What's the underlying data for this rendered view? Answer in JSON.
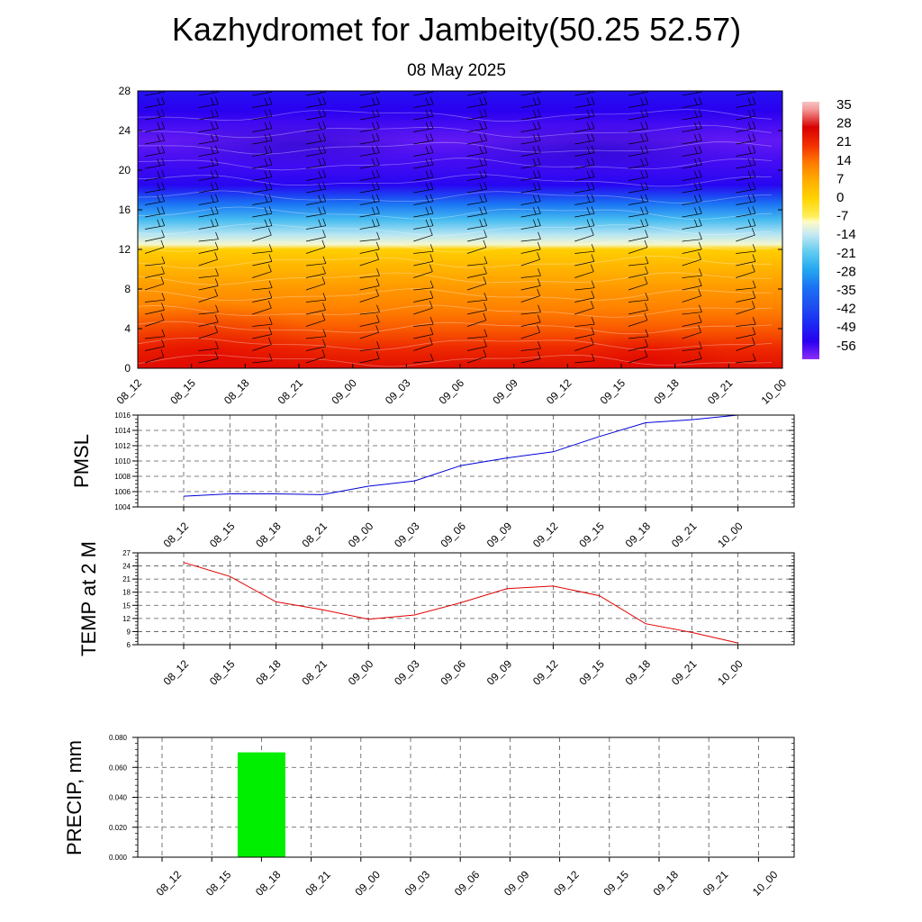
{
  "title": "Kazhydromet for Jambeity(50.25 52.57)",
  "subtitle": "08 May 2025",
  "colors": {
    "pmsl_line": "#0000d8",
    "temp_line": "#e00000",
    "precip_bar": "#00ee00"
  },
  "chart_data": [
    {
      "type": "heatmap",
      "name": "cross-section",
      "xlabel": "",
      "ylabel": "",
      "x_ticks": [
        "08_12",
        "08_15",
        "08_18",
        "08_21",
        "09_00",
        "09_03",
        "09_06",
        "09_09",
        "09_12",
        "09_15",
        "09_18",
        "09_21",
        "10_00"
      ],
      "y_ticks": [
        0,
        4,
        8,
        12,
        16,
        20,
        24,
        28
      ],
      "ylim": [
        0,
        28
      ],
      "colorbar_ticks": [
        35,
        28,
        21,
        14,
        7,
        0,
        -7,
        -14,
        -21,
        -28,
        -35,
        -42,
        -49,
        -56
      ],
      "colorbar_range": [
        -63,
        38
      ],
      "temperature_profile": [
        {
          "level": 0,
          "value": 26
        },
        {
          "level": 2,
          "value": 22
        },
        {
          "level": 4,
          "value": 17
        },
        {
          "level": 6,
          "value": 13
        },
        {
          "level": 8,
          "value": 10
        },
        {
          "level": 10,
          "value": 6
        },
        {
          "level": 12,
          "value": 1
        },
        {
          "level": 12.5,
          "value": -10
        },
        {
          "level": 13.5,
          "value": -15
        },
        {
          "level": 15,
          "value": -24
        },
        {
          "level": 16.5,
          "value": -34
        },
        {
          "level": 17.5,
          "value": -45
        },
        {
          "level": 18.5,
          "value": -55
        },
        {
          "level": 21,
          "value": -58
        },
        {
          "level": 23,
          "value": -60
        },
        {
          "level": 26,
          "value": -56
        },
        {
          "level": 28,
          "value": -53
        }
      ],
      "wind_barbs": true,
      "grid": false
    },
    {
      "type": "line",
      "name": "pmsl",
      "ylabel": "PMSL",
      "x": [
        "08_12",
        "08_15",
        "08_18",
        "08_21",
        "09_00",
        "09_03",
        "09_06",
        "09_09",
        "09_12",
        "09_15",
        "09_18",
        "09_21",
        "10_00"
      ],
      "values": [
        1005.4,
        1005.7,
        1005.7,
        1005.6,
        1006.7,
        1007.4,
        1009.4,
        1010.4,
        1011.2,
        1013.2,
        1015.0,
        1015.4,
        1016.0
      ],
      "ylim": [
        1004,
        1016
      ],
      "y_ticks": [
        1004,
        1006,
        1008,
        1010,
        1012,
        1014,
        1016
      ],
      "grid": true
    },
    {
      "type": "line",
      "name": "temp2m",
      "ylabel": "TEMP at 2 M",
      "x": [
        "08_12",
        "08_15",
        "08_18",
        "08_21",
        "09_00",
        "09_03",
        "09_06",
        "09_09",
        "09_12",
        "09_15",
        "09_18",
        "09_21",
        "10_00"
      ],
      "values": [
        24.8,
        21.6,
        15.8,
        14.0,
        11.8,
        12.8,
        15.6,
        18.8,
        19.4,
        17.2,
        10.8,
        8.8,
        6.4
      ],
      "ylim": [
        6,
        27
      ],
      "y_ticks": [
        6,
        9,
        12,
        15,
        18,
        21,
        24,
        27
      ],
      "grid": true
    },
    {
      "type": "bar",
      "name": "precip",
      "ylabel": "PRECIP, mm",
      "categories": [
        "08_12",
        "08_15",
        "08_18",
        "08_21",
        "09_00",
        "09_03",
        "09_06",
        "09_09",
        "09_12",
        "09_15",
        "09_18",
        "09_21",
        "10_00"
      ],
      "values": [
        0,
        0,
        0.07,
        0,
        0,
        0,
        0,
        0,
        0,
        0,
        0,
        0,
        0
      ],
      "ylim": [
        0,
        0.08
      ],
      "y_ticks": [
        "0.000",
        "0.020",
        "0.040",
        "0.060",
        "0.080"
      ],
      "grid": true
    }
  ]
}
